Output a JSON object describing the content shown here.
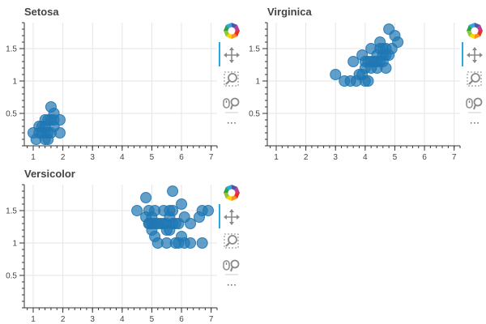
{
  "toolbar": {
    "tools": [
      "bokeh-logo-icon",
      "pan-icon",
      "box-zoom-icon",
      "wheel-zoom-icon",
      "more-icon"
    ],
    "more_label": "⋯"
  },
  "chart_data": [
    {
      "type": "scatter",
      "title": "Setosa",
      "xlabel": "",
      "ylabel": "",
      "xlim": [
        0.7,
        7.2
      ],
      "ylim": [
        0.0,
        1.9
      ],
      "x_ticks": [
        1,
        2,
        3,
        4,
        5,
        6,
        7
      ],
      "y_ticks": [
        0.5,
        1,
        1.5
      ],
      "y_tick_labels": [
        "0.5",
        "1",
        "1.5"
      ],
      "grid": true,
      "color": "#1f77b4",
      "points": [
        [
          1.0,
          0.2
        ],
        [
          1.1,
          0.1
        ],
        [
          1.2,
          0.2
        ],
        [
          1.3,
          0.2
        ],
        [
          1.3,
          0.3
        ],
        [
          1.4,
          0.1
        ],
        [
          1.4,
          0.2
        ],
        [
          1.4,
          0.3
        ],
        [
          1.5,
          0.1
        ],
        [
          1.5,
          0.2
        ],
        [
          1.5,
          0.4
        ],
        [
          1.6,
          0.2
        ],
        [
          1.6,
          0.4
        ],
        [
          1.6,
          0.6
        ],
        [
          1.7,
          0.3
        ],
        [
          1.7,
          0.4
        ],
        [
          1.7,
          0.5
        ],
        [
          1.9,
          0.2
        ],
        [
          1.9,
          0.4
        ],
        [
          1.4,
          0.4
        ],
        [
          1.2,
          0.3
        ]
      ]
    },
    {
      "type": "scatter",
      "title": "Virginica",
      "xlabel": "",
      "ylabel": "",
      "xlim": [
        0.7,
        7.2
      ],
      "ylim": [
        0.0,
        1.9
      ],
      "x_ticks": [
        1,
        2,
        3,
        4,
        5,
        6,
        7
      ],
      "y_ticks": [
        0.5,
        1,
        1.5
      ],
      "y_tick_labels": [
        "0.5",
        "1",
        "1.5"
      ],
      "grid": true,
      "color": "#1f77b4",
      "points": [
        [
          3.0,
          1.1
        ],
        [
          3.3,
          1.0
        ],
        [
          3.5,
          1.0
        ],
        [
          3.6,
          1.3
        ],
        [
          3.7,
          1.0
        ],
        [
          3.8,
          1.1
        ],
        [
          3.9,
          1.1
        ],
        [
          3.9,
          1.4
        ],
        [
          4.0,
          1.0
        ],
        [
          4.0,
          1.2
        ],
        [
          4.0,
          1.3
        ],
        [
          4.1,
          1.0
        ],
        [
          4.1,
          1.3
        ],
        [
          4.2,
          1.3
        ],
        [
          4.2,
          1.5
        ],
        [
          4.3,
          1.3
        ],
        [
          4.4,
          1.2
        ],
        [
          4.4,
          1.4
        ],
        [
          4.5,
          1.3
        ],
        [
          4.5,
          1.5
        ],
        [
          4.5,
          1.6
        ],
        [
          4.6,
          1.4
        ],
        [
          4.6,
          1.5
        ],
        [
          4.7,
          1.2
        ],
        [
          4.7,
          1.4
        ],
        [
          4.7,
          1.5
        ],
        [
          4.8,
          1.4
        ],
        [
          4.8,
          1.8
        ],
        [
          4.9,
          1.5
        ],
        [
          5.0,
          1.7
        ],
        [
          5.1,
          1.6
        ],
        [
          4.4,
          1.3
        ],
        [
          4.6,
          1.3
        ],
        [
          4.2,
          1.2
        ]
      ]
    },
    {
      "type": "scatter",
      "title": "Versicolor",
      "xlabel": "",
      "ylabel": "",
      "xlim": [
        0.7,
        7.2
      ],
      "ylim": [
        0.0,
        1.9
      ],
      "x_ticks": [
        1,
        2,
        3,
        4,
        5,
        6,
        7
      ],
      "y_ticks": [
        0.5,
        1,
        1.5
      ],
      "y_tick_labels": [
        "0.5",
        "1",
        "1.5"
      ],
      "grid": true,
      "color": "#1f77b4",
      "points": [
        [
          4.5,
          1.5
        ],
        [
          4.8,
          1.7
        ],
        [
          4.8,
          1.4
        ],
        [
          4.9,
          1.3
        ],
        [
          4.9,
          1.5
        ],
        [
          5.0,
          1.2
        ],
        [
          5.0,
          1.4
        ],
        [
          5.1,
          1.1
        ],
        [
          5.1,
          1.3
        ],
        [
          5.1,
          1.5
        ],
        [
          5.2,
          1.0
        ],
        [
          5.3,
          1.3
        ],
        [
          5.4,
          1.3
        ],
        [
          5.4,
          1.5
        ],
        [
          5.5,
          1.0
        ],
        [
          5.5,
          1.2
        ],
        [
          5.5,
          1.3
        ],
        [
          5.6,
          1.2
        ],
        [
          5.6,
          1.4
        ],
        [
          5.6,
          1.5
        ],
        [
          5.7,
          1.3
        ],
        [
          5.7,
          1.5
        ],
        [
          5.7,
          1.8
        ],
        [
          5.8,
          1.0
        ],
        [
          5.8,
          1.3
        ],
        [
          5.9,
          1.0
        ],
        [
          5.9,
          1.3
        ],
        [
          6.0,
          1.1
        ],
        [
          6.0,
          1.6
        ],
        [
          6.1,
          1.0
        ],
        [
          6.1,
          1.4
        ],
        [
          6.3,
          1.0
        ],
        [
          6.3,
          1.3
        ],
        [
          6.6,
          1.4
        ],
        [
          6.7,
          1.0
        ],
        [
          6.7,
          1.5
        ],
        [
          6.9,
          1.5
        ],
        [
          4.9,
          1.3
        ],
        [
          5.2,
          1.3
        ],
        [
          5.0,
          1.3
        ]
      ]
    }
  ]
}
